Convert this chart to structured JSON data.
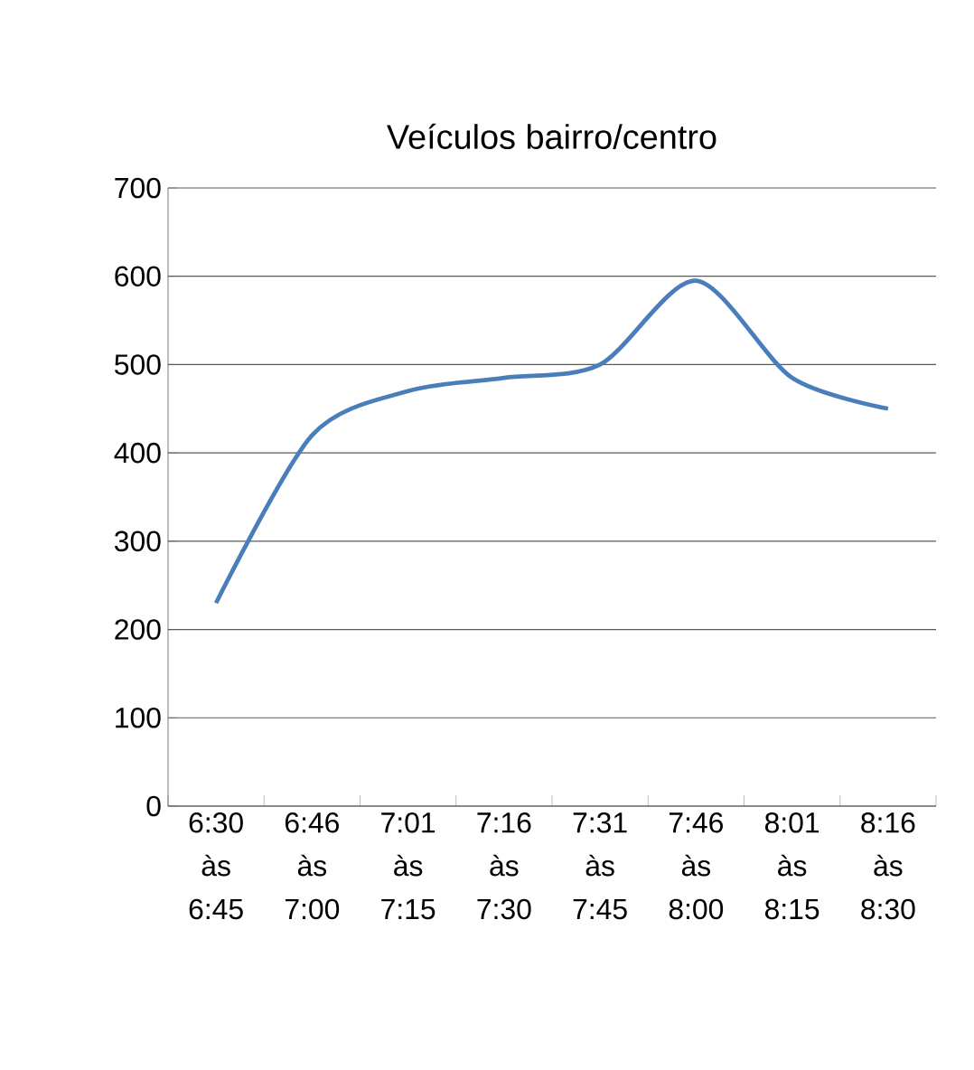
{
  "chart_data": {
    "type": "line",
    "title": "Veículos bairro/centro",
    "categories": [
      "6:30 às 6:45",
      "6:46 às 7:00",
      "7:01 às 7:15",
      "7:16 às 7:30",
      "7:31 às 7:45",
      "7:46 às 8:00",
      "8:01 às 8:15",
      "8:16 às 8:30"
    ],
    "series": [
      {
        "color": "#4a7ebb",
        "values": [
          230,
          420,
          470,
          485,
          500,
          595,
          485,
          450
        ]
      }
    ],
    "ylim": [
      0,
      700
    ],
    "yticks": [
      0,
      100,
      200,
      300,
      400,
      500,
      600,
      700
    ],
    "grid": "y",
    "marker": "none",
    "line_style": "solid"
  }
}
